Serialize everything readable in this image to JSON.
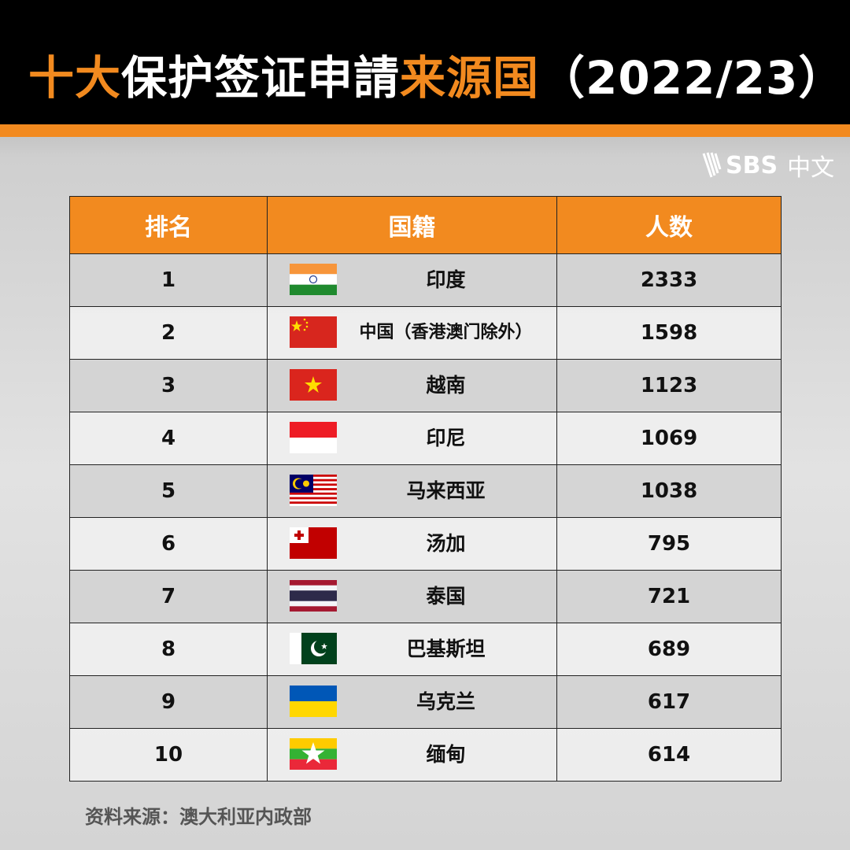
{
  "title": {
    "part1": "十大",
    "part2": "保护签证申請",
    "part3": "来源国",
    "part4": "（2022/23）"
  },
  "logo": {
    "brand": "SBS",
    "suffix": "中文"
  },
  "colors": {
    "accent": "#f28a1f",
    "header_bg": "#000000"
  },
  "table": {
    "headers": [
      "排名",
      "国籍",
      "人数"
    ],
    "rows": [
      {
        "rank": "1",
        "country": "印度",
        "flag": "india",
        "count": "2333"
      },
      {
        "rank": "2",
        "country": "中国（香港澳门除外）",
        "flag": "china",
        "count": "1598"
      },
      {
        "rank": "3",
        "country": "越南",
        "flag": "vietnam",
        "count": "1123"
      },
      {
        "rank": "4",
        "country": "印尼",
        "flag": "indonesia",
        "count": "1069"
      },
      {
        "rank": "5",
        "country": "马来西亚",
        "flag": "malaysia",
        "count": "1038"
      },
      {
        "rank": "6",
        "country": "汤加",
        "flag": "tonga",
        "count": "795"
      },
      {
        "rank": "7",
        "country": "泰国",
        "flag": "thailand",
        "count": "721"
      },
      {
        "rank": "8",
        "country": "巴基斯坦",
        "flag": "pakistan",
        "count": "689"
      },
      {
        "rank": "9",
        "country": "乌克兰",
        "flag": "ukraine",
        "count": "617"
      },
      {
        "rank": "10",
        "country": "缅甸",
        "flag": "myanmar",
        "count": "614"
      }
    ]
  },
  "source": "资料来源：澳大利亚内政部"
}
